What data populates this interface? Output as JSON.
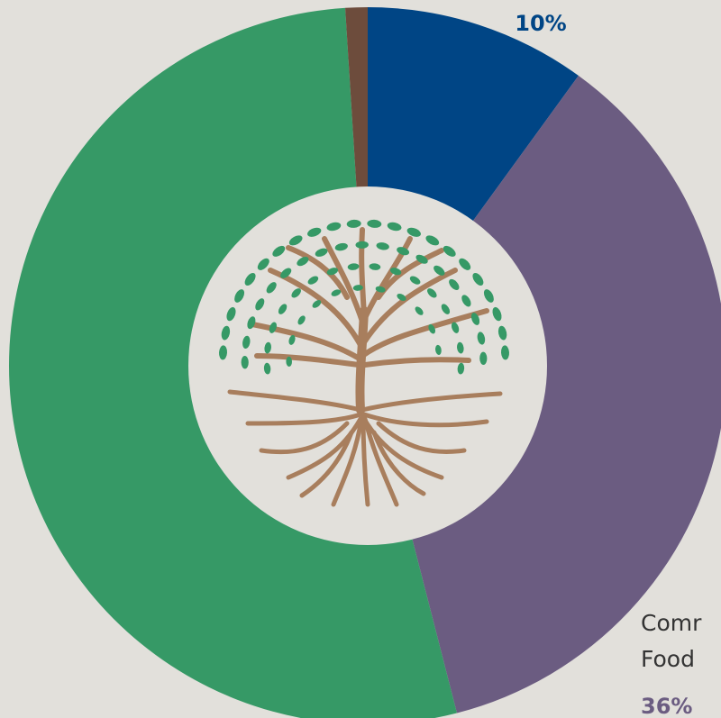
{
  "chart_data": {
    "type": "pie",
    "variant": "donut",
    "slices": [
      {
        "label": "",
        "value": 10,
        "percent_text": "10%",
        "color": "#004585"
      },
      {
        "label": "Comr\nFood",
        "value": 36,
        "percent_text": "36%",
        "color": "#6b5c81"
      },
      {
        "label": "",
        "value": 53,
        "percent_text": "",
        "color": "#369966"
      },
      {
        "label": "",
        "value": 1,
        "percent_text": "",
        "color": "#6d4c3c"
      }
    ],
    "start_angle_deg": 0,
    "direction": "clockwise",
    "center_emblem": "tree-of-life-logo",
    "colors": {
      "background": "#e2e0db",
      "center_disc": "#e2e0db",
      "leaf": "#369966",
      "branch": "#a87e5d",
      "label_text": "#333333"
    }
  }
}
